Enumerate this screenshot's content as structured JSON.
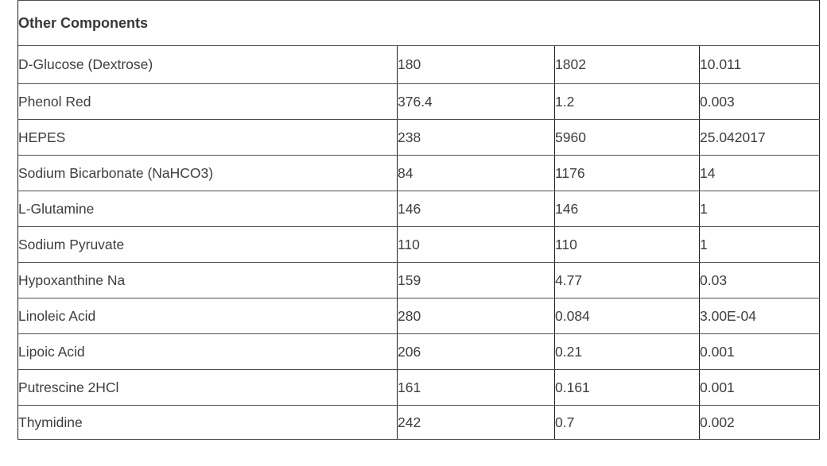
{
  "table": {
    "title": "Other Components",
    "rows": [
      {
        "component": "D-Glucose (Dextrose)",
        "values": [
          "180",
          "1802",
          "10.011"
        ]
      },
      {
        "component": "Phenol Red",
        "values": [
          "376.4",
          "1.2",
          "0.003"
        ]
      },
      {
        "component": "HEPES",
        "values": [
          "238",
          "5960",
          "25.042017"
        ]
      },
      {
        "component": "Sodium Bicarbonate (NaHCO3)",
        "values": [
          "84",
          "1176",
          "14"
        ]
      },
      {
        "component": "L-Glutamine",
        "values": [
          "146",
          "146",
          "1"
        ]
      },
      {
        "component": "Sodium Pyruvate",
        "values": [
          "110",
          "110",
          "1"
        ]
      },
      {
        "component": "Hypoxanthine Na",
        "values": [
          "159",
          "4.77",
          "0.03"
        ]
      },
      {
        "component": "Linoleic Acid",
        "values": [
          "280",
          "0.084",
          "3.00E-04"
        ]
      },
      {
        "component": "Lipoic Acid",
        "values": [
          "206",
          "0.21",
          "0.001"
        ]
      },
      {
        "component": "Putrescine 2HCl",
        "values": [
          "161",
          "0.161",
          "0.001"
        ]
      },
      {
        "component": "Thymidine",
        "values": [
          "242",
          "0.7",
          "0.002"
        ]
      }
    ],
    "colors": {
      "text": "#3e3e3e",
      "header_text": "#383838",
      "border_vertical": "#1f1f1f",
      "border_horizontal": "#4f4f4f",
      "background": "#ffffff"
    }
  }
}
